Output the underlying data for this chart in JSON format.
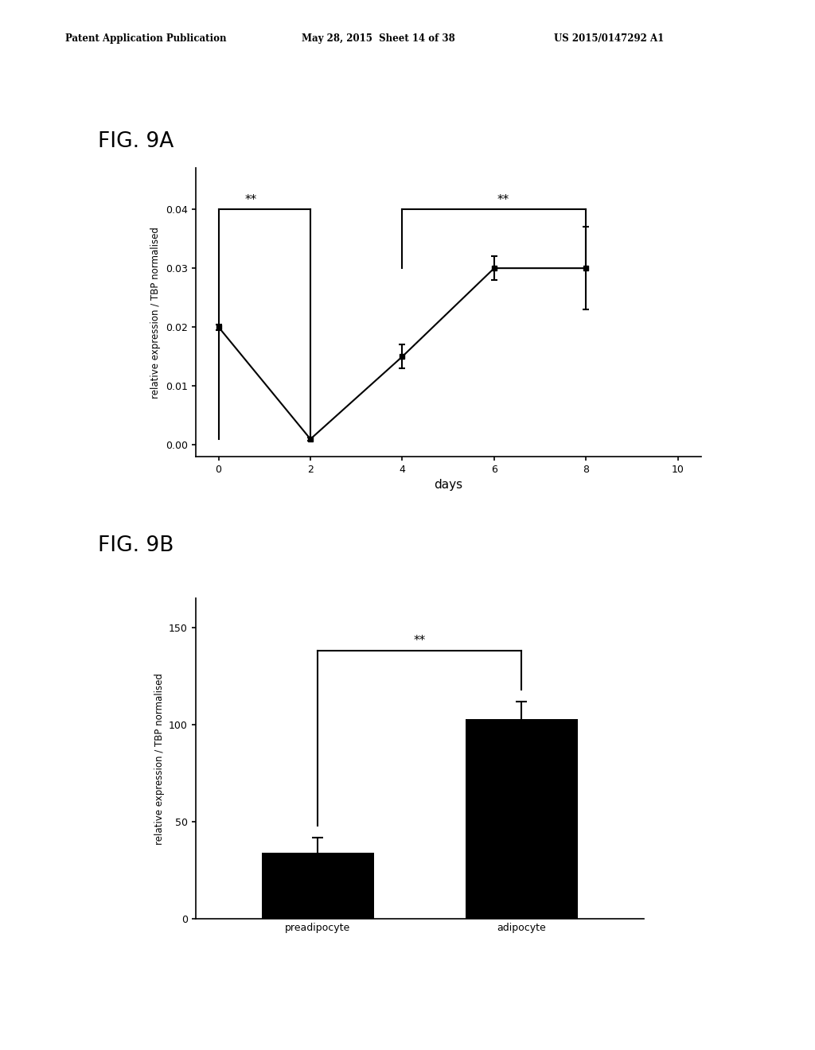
{
  "fig9a": {
    "x": [
      0,
      2,
      4,
      6,
      8
    ],
    "y": [
      0.02,
      0.001,
      0.015,
      0.03,
      0.03
    ],
    "yerr": [
      0.0005,
      0.0003,
      0.002,
      0.002,
      0.007
    ],
    "xlabel": "days",
    "ylabel": "relative expression / TBP normalised",
    "xlim": [
      -0.5,
      10.5
    ],
    "ylim": [
      -0.002,
      0.047
    ],
    "yticks": [
      0.0,
      0.01,
      0.02,
      0.03,
      0.04
    ],
    "xticks": [
      0,
      2,
      4,
      6,
      8,
      10
    ],
    "sig1_y": 0.04,
    "sig1_x1": 0,
    "sig1_x2": 2,
    "sig1_drop": 0.001,
    "sig2_y": 0.04,
    "sig2_x1": 4,
    "sig2_x2": 8,
    "sig2_drop": 0.03,
    "label": "FIG. 9A"
  },
  "fig9b": {
    "categories": [
      "preadipocyte",
      "adipocyte"
    ],
    "values": [
      34,
      103
    ],
    "yerr": [
      8,
      9
    ],
    "ylabel": "relative expression / TBP normalised",
    "ylim": [
      0,
      165
    ],
    "yticks": [
      0,
      50,
      100,
      150
    ],
    "sig_y": 138,
    "sig_x1": 0,
    "sig_x2": 1,
    "label": "FIG. 9B"
  },
  "header_left": "Patent Application Publication",
  "header_mid": "May 28, 2015  Sheet 14 of 38",
  "header_right": "US 2015/0147292 A1",
  "bar_color": "#000000",
  "line_color": "#000000",
  "marker_color": "#000000",
  "bg_color": "#ffffff",
  "text_color": "#000000"
}
